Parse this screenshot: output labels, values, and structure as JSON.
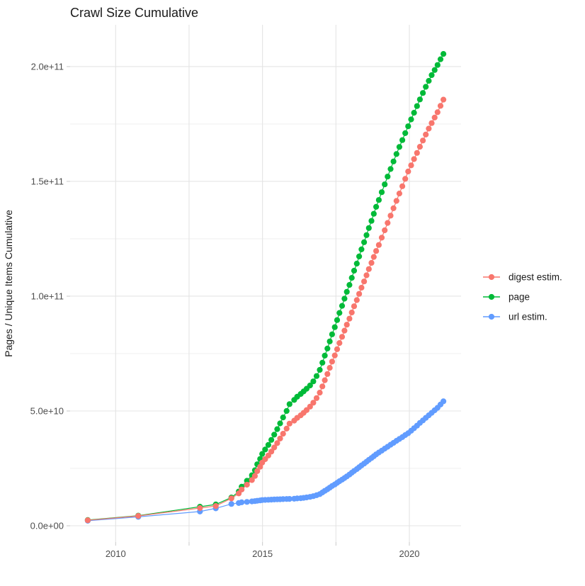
{
  "chart_data": {
    "type": "line",
    "title": "Crawl Size Cumulative",
    "xlabel": "",
    "ylabel": "Pages / Unique Items Cumulative",
    "unit": "point values are cumulative pages / unique items, in billions (value × 1e9)",
    "grid": "on",
    "background_color": "#FFFFFF",
    "grid_major_color": "#E4E4E4",
    "grid_minor_color": "#EFEFEF",
    "tick_color": "#C9C9C9",
    "tick_label_color": "#4D4D4D",
    "xlim": [
      2008.45,
      2021.76
    ],
    "ylim_e9": [
      -7.1,
      218.2
    ],
    "x_gridlines": [
      2010,
      2012.5,
      2015,
      2017.5,
      2020
    ],
    "x_ticks": [
      {
        "value": 2010,
        "label": "2010"
      },
      {
        "value": 2012.5,
        "label": ""
      },
      {
        "value": 2015,
        "label": "2015"
      },
      {
        "value": 2017.5,
        "label": ""
      },
      {
        "value": 2020,
        "label": "2020"
      }
    ],
    "y_ticks": [
      {
        "value_e9": 0,
        "label": "0.0e+00"
      },
      {
        "value_e9": 50,
        "label": "5.0e+10"
      },
      {
        "value_e9": 100,
        "label": "1.0e+11"
      },
      {
        "value_e9": 150,
        "label": "1.5e+11"
      },
      {
        "value_e9": 200,
        "label": "2.0e+11"
      }
    ],
    "y_minor_gridlines_e9": [
      25,
      75,
      125,
      175
    ],
    "legend": {
      "position": "right",
      "items": [
        {
          "label": "digest estim.",
          "color": "#F8766D"
        },
        {
          "label": "page",
          "color": "#00BA38"
        },
        {
          "label": "url estim.",
          "color": "#619CFF"
        }
      ]
    },
    "draw_order": [
      "url estim.",
      "page",
      "digest estim."
    ],
    "series": [
      {
        "name": "digest estim.",
        "color": "#F8766D",
        "points_year_value_e9": [
          [
            2009.05,
            2.4
          ],
          [
            2010.77,
            4.3
          ],
          [
            2012.87,
            7.7
          ],
          [
            2013.41,
            8.6
          ],
          [
            2013.94,
            11.9
          ],
          [
            2014.19,
            14.1
          ],
          [
            2014.29,
            15.8
          ],
          [
            2014.47,
            17.9
          ],
          [
            2014.64,
            19.9
          ],
          [
            2014.74,
            21.7
          ],
          [
            2014.82,
            23.8
          ],
          [
            2014.92,
            25.7
          ],
          [
            2014.99,
            27.5
          ],
          [
            2015.09,
            29.0
          ],
          [
            2015.2,
            30.6
          ],
          [
            2015.3,
            32.3
          ],
          [
            2015.4,
            34.1
          ],
          [
            2015.5,
            36.0
          ],
          [
            2015.6,
            38.0
          ],
          [
            2015.7,
            40.1
          ],
          [
            2015.82,
            42.3
          ],
          [
            2015.92,
            44.5
          ],
          [
            2016.08,
            45.8
          ],
          [
            2016.18,
            47.0
          ],
          [
            2016.3,
            48.1
          ],
          [
            2016.4,
            49.2
          ],
          [
            2016.5,
            50.4
          ],
          [
            2016.62,
            51.9
          ],
          [
            2016.73,
            53.6
          ],
          [
            2016.84,
            55.6
          ],
          [
            2016.95,
            58.0
          ],
          [
            2017.04,
            60.7
          ],
          [
            2017.12,
            63.4
          ],
          [
            2017.21,
            66.1
          ],
          [
            2017.29,
            68.8
          ],
          [
            2017.37,
            71.5
          ],
          [
            2017.46,
            74.2
          ],
          [
            2017.54,
            76.9
          ],
          [
            2017.62,
            79.6
          ],
          [
            2017.71,
            82.3
          ],
          [
            2017.79,
            85.0
          ],
          [
            2017.87,
            87.6
          ],
          [
            2017.96,
            90.2
          ],
          [
            2018.04,
            92.9
          ],
          [
            2018.12,
            95.6
          ],
          [
            2018.21,
            98.3
          ],
          [
            2018.29,
            101.0
          ],
          [
            2018.37,
            103.7
          ],
          [
            2018.46,
            106.4
          ],
          [
            2018.54,
            109.1
          ],
          [
            2018.62,
            111.8
          ],
          [
            2018.71,
            114.5
          ],
          [
            2018.79,
            117.1
          ],
          [
            2018.87,
            119.7
          ],
          [
            2018.96,
            122.3
          ],
          [
            2019.06,
            125.5
          ],
          [
            2019.16,
            128.7
          ],
          [
            2019.26,
            131.9
          ],
          [
            2019.36,
            135.1
          ],
          [
            2019.46,
            138.3
          ],
          [
            2019.56,
            141.5
          ],
          [
            2019.66,
            144.7
          ],
          [
            2019.76,
            147.9
          ],
          [
            2019.86,
            151.1
          ],
          [
            2019.96,
            154.3
          ],
          [
            2020.06,
            157.0
          ],
          [
            2020.16,
            159.7
          ],
          [
            2020.26,
            162.4
          ],
          [
            2020.36,
            165.1
          ],
          [
            2020.46,
            167.8
          ],
          [
            2020.56,
            170.4
          ],
          [
            2020.66,
            173.0
          ],
          [
            2020.76,
            175.4
          ],
          [
            2020.86,
            177.8
          ],
          [
            2020.96,
            180.1
          ],
          [
            2021.06,
            182.9
          ],
          [
            2021.16,
            185.6
          ]
        ]
      },
      {
        "name": "page",
        "color": "#00BA38",
        "points_year_value_e9": [
          [
            2009.05,
            2.5
          ],
          [
            2010.77,
            4.4
          ],
          [
            2012.87,
            8.3
          ],
          [
            2013.41,
            9.3
          ],
          [
            2013.94,
            12.3
          ],
          [
            2014.19,
            14.9
          ],
          [
            2014.29,
            17.0
          ],
          [
            2014.47,
            19.6
          ],
          [
            2014.64,
            22.0
          ],
          [
            2014.74,
            24.2
          ],
          [
            2014.82,
            26.8
          ],
          [
            2014.92,
            29.1
          ],
          [
            2014.99,
            31.3
          ],
          [
            2015.09,
            33.2
          ],
          [
            2015.2,
            35.2
          ],
          [
            2015.3,
            37.4
          ],
          [
            2015.4,
            39.7
          ],
          [
            2015.5,
            42.1
          ],
          [
            2015.6,
            44.6
          ],
          [
            2015.7,
            47.2
          ],
          [
            2015.82,
            50.0
          ],
          [
            2015.92,
            53.0
          ],
          [
            2016.08,
            54.8
          ],
          [
            2016.18,
            56.2
          ],
          [
            2016.3,
            57.4
          ],
          [
            2016.4,
            58.5
          ],
          [
            2016.5,
            59.7
          ],
          [
            2016.62,
            61.1
          ],
          [
            2016.73,
            62.9
          ],
          [
            2016.84,
            65.2
          ],
          [
            2016.95,
            67.9
          ],
          [
            2017.04,
            71.0
          ],
          [
            2017.12,
            74.1
          ],
          [
            2017.21,
            77.2
          ],
          [
            2017.29,
            80.3
          ],
          [
            2017.37,
            83.4
          ],
          [
            2017.46,
            86.5
          ],
          [
            2017.54,
            89.6
          ],
          [
            2017.62,
            92.7
          ],
          [
            2017.71,
            95.8
          ],
          [
            2017.79,
            98.9
          ],
          [
            2017.87,
            101.9
          ],
          [
            2017.96,
            104.9
          ],
          [
            2018.04,
            108.0
          ],
          [
            2018.12,
            111.1
          ],
          [
            2018.21,
            114.2
          ],
          [
            2018.29,
            117.3
          ],
          [
            2018.37,
            120.4
          ],
          [
            2018.46,
            123.5
          ],
          [
            2018.54,
            126.6
          ],
          [
            2018.62,
            129.7
          ],
          [
            2018.71,
            132.8
          ],
          [
            2018.79,
            135.9
          ],
          [
            2018.87,
            138.9
          ],
          [
            2018.96,
            141.9
          ],
          [
            2019.06,
            145.3
          ],
          [
            2019.16,
            148.7
          ],
          [
            2019.26,
            152.1
          ],
          [
            2019.36,
            155.4
          ],
          [
            2019.46,
            158.7
          ],
          [
            2019.56,
            161.9
          ],
          [
            2019.66,
            165.0
          ],
          [
            2019.76,
            168.0
          ],
          [
            2019.86,
            171.0
          ],
          [
            2019.96,
            174.0
          ],
          [
            2020.06,
            177.0
          ],
          [
            2020.16,
            179.9
          ],
          [
            2020.26,
            182.8
          ],
          [
            2020.36,
            185.7
          ],
          [
            2020.46,
            188.5
          ],
          [
            2020.56,
            191.2
          ],
          [
            2020.66,
            193.8
          ],
          [
            2020.76,
            196.3
          ],
          [
            2020.86,
            198.5
          ],
          [
            2020.96,
            200.7
          ],
          [
            2021.06,
            203.2
          ],
          [
            2021.16,
            205.5
          ]
        ]
      },
      {
        "name": "url estim.",
        "color": "#619CFF",
        "points_year_value_e9": [
          [
            2009.05,
            2.2
          ],
          [
            2010.77,
            3.9
          ],
          [
            2012.87,
            6.2
          ],
          [
            2013.41,
            7.6
          ],
          [
            2013.94,
            9.5
          ],
          [
            2014.19,
            9.9
          ],
          [
            2014.29,
            10.2
          ],
          [
            2014.47,
            10.4
          ],
          [
            2014.64,
            10.6
          ],
          [
            2014.74,
            10.75
          ],
          [
            2014.82,
            10.9
          ],
          [
            2014.92,
            11.05
          ],
          [
            2014.99,
            11.2
          ],
          [
            2015.09,
            11.26
          ],
          [
            2015.2,
            11.32
          ],
          [
            2015.3,
            11.38
          ],
          [
            2015.4,
            11.44
          ],
          [
            2015.5,
            11.5
          ],
          [
            2015.6,
            11.55
          ],
          [
            2015.7,
            11.6
          ],
          [
            2015.82,
            11.65
          ],
          [
            2015.92,
            11.7
          ],
          [
            2016.08,
            11.8
          ],
          [
            2016.18,
            11.9
          ],
          [
            2016.3,
            12.0
          ],
          [
            2016.4,
            12.15
          ],
          [
            2016.5,
            12.35
          ],
          [
            2016.62,
            12.6
          ],
          [
            2016.73,
            12.9
          ],
          [
            2016.84,
            13.3
          ],
          [
            2016.95,
            13.8
          ],
          [
            2017.04,
            14.5
          ],
          [
            2017.12,
            15.2
          ],
          [
            2017.21,
            15.9
          ],
          [
            2017.29,
            16.6
          ],
          [
            2017.37,
            17.3
          ],
          [
            2017.46,
            18.0
          ],
          [
            2017.54,
            18.7
          ],
          [
            2017.62,
            19.4
          ],
          [
            2017.71,
            20.1
          ],
          [
            2017.79,
            20.8
          ],
          [
            2017.87,
            21.5
          ],
          [
            2017.96,
            22.3
          ],
          [
            2018.04,
            23.1
          ],
          [
            2018.12,
            23.9
          ],
          [
            2018.21,
            24.7
          ],
          [
            2018.29,
            25.5
          ],
          [
            2018.37,
            26.3
          ],
          [
            2018.46,
            27.1
          ],
          [
            2018.54,
            27.9
          ],
          [
            2018.62,
            28.7
          ],
          [
            2018.71,
            29.5
          ],
          [
            2018.79,
            30.3
          ],
          [
            2018.87,
            31.1
          ],
          [
            2018.96,
            31.9
          ],
          [
            2019.06,
            32.7
          ],
          [
            2019.16,
            33.6
          ],
          [
            2019.26,
            34.4
          ],
          [
            2019.36,
            35.3
          ],
          [
            2019.46,
            36.1
          ],
          [
            2019.56,
            37.0
          ],
          [
            2019.66,
            37.8
          ],
          [
            2019.76,
            38.6
          ],
          [
            2019.86,
            39.5
          ],
          [
            2019.96,
            40.3
          ],
          [
            2020.06,
            41.4
          ],
          [
            2020.16,
            42.5
          ],
          [
            2020.26,
            43.6
          ],
          [
            2020.36,
            44.8
          ],
          [
            2020.46,
            45.9
          ],
          [
            2020.56,
            47.0
          ],
          [
            2020.66,
            48.1
          ],
          [
            2020.76,
            49.2
          ],
          [
            2020.86,
            50.3
          ],
          [
            2020.96,
            51.4
          ],
          [
            2021.06,
            52.8
          ],
          [
            2021.16,
            54.2
          ]
        ]
      }
    ]
  }
}
